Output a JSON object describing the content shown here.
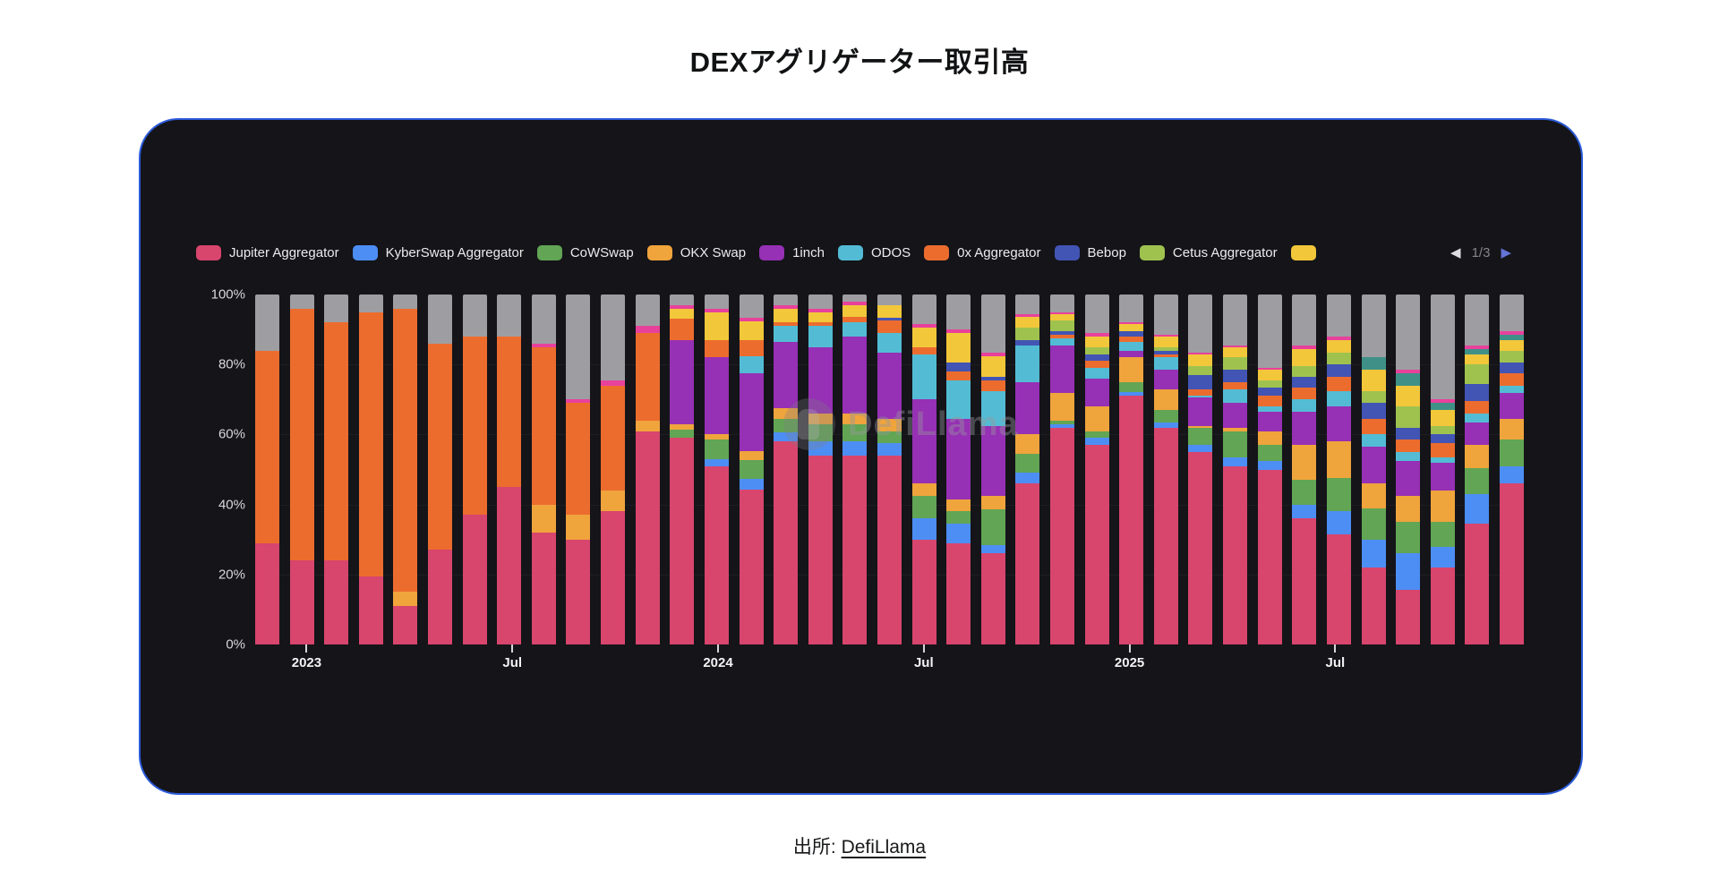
{
  "page": {
    "title": "DEXアグリゲーター取引高",
    "source_prefix": "出所:",
    "source_link": "DefiLlama"
  },
  "watermark": {
    "text": "DefiLlama",
    "icon": "llama-logo"
  },
  "legend": {
    "items": [
      {
        "label": "Jupiter Aggregator",
        "color": "#d8456d"
      },
      {
        "label": "KyberSwap Aggregator",
        "color": "#4d8ef5"
      },
      {
        "label": "CoWSwap",
        "color": "#62a554"
      },
      {
        "label": "OKX Swap",
        "color": "#f0a43c"
      },
      {
        "label": "1inch",
        "color": "#9630b4"
      },
      {
        "label": "ODOS",
        "color": "#53bcd4"
      },
      {
        "label": "0x Aggregator",
        "color": "#ec6c2e"
      },
      {
        "label": "Bebop",
        "color": "#4254b4"
      },
      {
        "label": "Cetus Aggregator",
        "color": "#9fc24f"
      },
      {
        "label": "",
        "color": "#f3c73a"
      }
    ],
    "pager": {
      "prev_icon": "◀",
      "next_icon": "▶",
      "label": "1/3",
      "prev_color": "#dcdde0",
      "next_color": "#6473d6",
      "label_color": "#85858a"
    }
  },
  "chart_data": {
    "type": "bar",
    "stacked": true,
    "unit": "percent-share",
    "ylim": [
      0,
      100
    ],
    "grid": false,
    "legend_position": "top",
    "y_ticks": [
      {
        "value": 100,
        "label": "100%"
      },
      {
        "value": 80,
        "label": "80%"
      },
      {
        "value": 60,
        "label": "60%"
      },
      {
        "value": 40,
        "label": "40%"
      },
      {
        "value": 20,
        "label": "20%"
      },
      {
        "value": 0,
        "label": "0%"
      }
    ],
    "x_ticks": [
      {
        "index": 1,
        "label": "2023"
      },
      {
        "index": 7,
        "label": "Jul"
      },
      {
        "index": 13,
        "label": "2024"
      },
      {
        "index": 19,
        "label": "Jul"
      },
      {
        "index": 25,
        "label": "2025"
      },
      {
        "index": 31,
        "label": "Jul"
      }
    ],
    "months": [
      "2022-12",
      "2023-01",
      "2023-02",
      "2023-03",
      "2023-04",
      "2023-05",
      "2023-06",
      "2023-07",
      "2023-08",
      "2023-09",
      "2023-10",
      "2023-11",
      "2023-12",
      "2024-01",
      "2024-02",
      "2024-03",
      "2024-04",
      "2024-05",
      "2024-06",
      "2024-07",
      "2024-08",
      "2024-09",
      "2024-10",
      "2024-11",
      "2024-12",
      "2025-01",
      "2025-02",
      "2025-03",
      "2025-04",
      "2025-05",
      "2025-06",
      "2025-07",
      "2025-08",
      "2025-09",
      "2025-10",
      "2025-11",
      "2025-12"
    ],
    "series": [
      {
        "id": "jupiter",
        "name": "Jupiter Aggregator",
        "color": "#d8456d",
        "values": [
          29,
          24,
          24,
          19.5,
          11,
          27,
          37,
          45,
          32,
          30,
          38,
          61,
          59,
          51,
          44,
          58,
          54,
          54,
          54,
          30,
          29,
          26,
          46,
          62,
          57,
          71,
          62,
          55,
          51,
          50,
          36,
          31.5,
          22,
          15.5,
          22,
          34.5,
          46
        ]
      },
      {
        "id": "kyberswap",
        "name": "KyberSwap Aggregator",
        "color": "#4d8ef5",
        "values": [
          0,
          0,
          0,
          0,
          0,
          0,
          0,
          0,
          0,
          0,
          0,
          0,
          0,
          2,
          3,
          2.5,
          4,
          4,
          3.5,
          6,
          5.5,
          2.5,
          3,
          1,
          2,
          1,
          1.5,
          2,
          2.5,
          2.5,
          4,
          6.5,
          8,
          10.5,
          6,
          8.5,
          5
        ]
      },
      {
        "id": "cowswap",
        "name": "CoWSwap",
        "color": "#62a554",
        "values": [
          0,
          0,
          0,
          0,
          0,
          0,
          0,
          0,
          0,
          0,
          0,
          0,
          2.5,
          5.5,
          5.5,
          4,
          5,
          5,
          3.5,
          6.5,
          3.5,
          10,
          5.5,
          1,
          2,
          3,
          3.5,
          5,
          7.5,
          4.5,
          7,
          9.5,
          9,
          9,
          7,
          7.5,
          7.5
        ]
      },
      {
        "id": "okx",
        "name": "OKX Swap",
        "color": "#f0a43c",
        "values": [
          0,
          0,
          0,
          0,
          4,
          0,
          0,
          0,
          8,
          7,
          6,
          3,
          1.5,
          1.5,
          2.5,
          3,
          3,
          3,
          3.5,
          3.5,
          3.5,
          4,
          5.5,
          8,
          7,
          7,
          6,
          0.5,
          1,
          4,
          10,
          10.5,
          7,
          7.5,
          9,
          6.5,
          6
        ]
      },
      {
        "id": "oneinch",
        "name": "1inch",
        "color": "#9630b4",
        "values": [
          0,
          0,
          0,
          0,
          0,
          0,
          0,
          0,
          0,
          0,
          0,
          0,
          24,
          22,
          22,
          19,
          19,
          22,
          19,
          24,
          23,
          20,
          15,
          13.5,
          8,
          2,
          5.5,
          8,
          7,
          5.5,
          9.5,
          10,
          10.5,
          10,
          8,
          6.5,
          7.5
        ]
      },
      {
        "id": "odos",
        "name": "ODOS",
        "color": "#53bcd4",
        "values": [
          0,
          0,
          0,
          0,
          0,
          0,
          0,
          0,
          0,
          0,
          0,
          0,
          0,
          0,
          5,
          4.5,
          6,
          4,
          5.5,
          13,
          11,
          10,
          10.5,
          2,
          3,
          2.5,
          3.5,
          0.5,
          4,
          1.5,
          3.5,
          4.5,
          3.5,
          2.5,
          1.5,
          2.5,
          2
        ]
      },
      {
        "id": "zerox",
        "name": "0x Aggregator",
        "color": "#ec6c2e",
        "values": [
          55,
          72,
          68,
          75.5,
          81,
          59,
          51,
          43,
          45,
          32,
          30,
          25,
          6,
          5,
          4.5,
          1,
          1,
          1.5,
          3.5,
          2,
          2.5,
          3,
          0,
          1,
          2,
          1.5,
          1,
          2,
          2,
          3,
          3.5,
          4,
          4.5,
          3.5,
          4,
          3.5,
          3.5
        ]
      },
      {
        "id": "bebop",
        "name": "Bebop",
        "color": "#4254b4",
        "values": [
          0,
          0,
          0,
          0,
          0,
          0,
          0,
          0,
          0,
          0,
          0,
          0,
          0,
          0,
          0,
          0,
          0,
          0,
          1,
          0,
          2.5,
          1,
          1.5,
          1,
          2,
          1.5,
          1,
          4,
          3.5,
          2.5,
          3,
          3.5,
          4.5,
          3.5,
          2.5,
          5,
          3
        ]
      },
      {
        "id": "cetus",
        "name": "Cetus Aggregator",
        "color": "#9fc24f",
        "values": [
          0,
          0,
          0,
          0,
          0,
          0,
          0,
          0,
          0,
          0,
          0,
          0,
          0,
          0,
          0,
          0,
          0,
          0,
          0,
          0,
          0,
          0,
          3.5,
          3,
          2,
          0,
          1,
          2.5,
          3.5,
          2,
          3,
          3.5,
          3.5,
          6,
          2.5,
          5.5,
          3.5
        ]
      },
      {
        "id": "series-10-yellow",
        "name": "",
        "color": "#f3c73a",
        "values": [
          0,
          0,
          0,
          0,
          0,
          0,
          0,
          0,
          0,
          0,
          0,
          0,
          3,
          8,
          5.5,
          4,
          3,
          3.5,
          3.5,
          5.5,
          8.5,
          6,
          3,
          2,
          3,
          2,
          3,
          3.5,
          3,
          3,
          5,
          3.5,
          6,
          6,
          4.5,
          3,
          3
        ]
      },
      {
        "id": "series-11-teal",
        "name": "",
        "color": "#3f9187",
        "values": [
          0,
          0,
          0,
          0,
          0,
          0,
          0,
          0,
          0,
          0,
          0,
          0,
          0,
          0,
          0,
          0,
          0,
          0,
          0,
          0,
          0,
          0,
          0,
          0,
          0,
          0,
          0,
          0,
          0,
          0,
          0,
          0,
          3.5,
          3.5,
          2,
          1.5,
          1.5
        ]
      },
      {
        "id": "series-12-magenta",
        "name": "",
        "color": "#e8419c",
        "values": [
          0,
          0,
          0,
          0,
          0,
          0,
          0,
          0,
          1,
          1,
          1.5,
          2,
          1,
          1,
          1,
          1,
          1,
          1,
          0,
          1,
          1,
          1,
          1,
          0.5,
          1,
          0.5,
          0.5,
          0.5,
          0.5,
          0.5,
          1,
          1,
          0,
          1,
          1,
          1,
          1
        ]
      },
      {
        "id": "series-gray-remainder",
        "name": "",
        "color": "#9e9ea2",
        "values": [
          16,
          4,
          8,
          5,
          4,
          14,
          12,
          12,
          14,
          30,
          24.5,
          9,
          3,
          4,
          6.5,
          3,
          4,
          2,
          3,
          8.5,
          10,
          16.5,
          5.5,
          5,
          11,
          8,
          11.5,
          16.5,
          14.5,
          21,
          14.5,
          12,
          18,
          21.5,
          30,
          14.5,
          10.5
        ]
      }
    ]
  }
}
